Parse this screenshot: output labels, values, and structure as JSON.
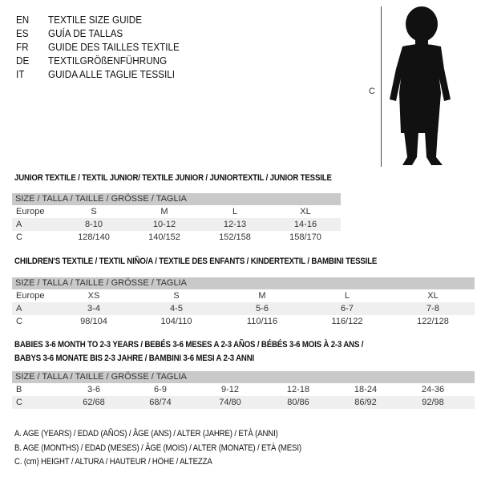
{
  "languages": [
    {
      "code": "EN",
      "title": "TEXTILE SIZE GUIDE"
    },
    {
      "code": "ES",
      "title": "GUÍA DE TALLAS"
    },
    {
      "code": "FR",
      "title": "GUIDE DES TAILLES TEXTILE"
    },
    {
      "code": "DE",
      "title": "TEXTILGRÖßENFÜHRUNG"
    },
    {
      "code": "IT",
      "title": "GUIDA ALLE TAGLIE TESSILI"
    }
  ],
  "figure": {
    "measure_label": "C"
  },
  "size_header": "SIZE / TALLA / TAILLE / GRÖSSE / TAGLIA",
  "junior": {
    "title": "JUNIOR TEXTILE / TEXTIL JUNIOR/ TEXTILE JUNIOR / JUNIORTEXTIL / JUNIOR TESSILE",
    "rows": [
      {
        "label": "Europe",
        "values": [
          "S",
          "M",
          "L",
          "XL"
        ]
      },
      {
        "label": "A",
        "values": [
          "8-10",
          "10-12",
          "12-13",
          "14-16"
        ]
      },
      {
        "label": "C",
        "values": [
          "128/140",
          "140/152",
          "152/158",
          "158/170"
        ]
      }
    ]
  },
  "children": {
    "title": "CHILDREN'S TEXTILE / TEXTIL NIÑO/A / TEXTILE DES ENFANTS / KINDERTEXTIL / BAMBINI TESSILE",
    "rows": [
      {
        "label": "Europe",
        "values": [
          "XS",
          "S",
          "M",
          "L",
          "XL"
        ]
      },
      {
        "label": "A",
        "values": [
          "3-4",
          "4-5",
          "5-6",
          "6-7",
          "7-8"
        ]
      },
      {
        "label": "C",
        "values": [
          "98/104",
          "104/110",
          "110/116",
          "116/122",
          "122/128"
        ]
      }
    ]
  },
  "babies": {
    "title_line1": "BABIES 3-6 MONTH TO 2-3 YEARS / BEBÉS 3-6 MESES A 2-3 AÑOS / BÉBÉS 3-6 MOIS À 2-3 ANS /",
    "title_line2": "BABYS 3-6 MONATE BIS 2-3 JAHRE / BAMBINI 3-6 MESI A 2-3 ANNI",
    "rows": [
      {
        "label": "B",
        "values": [
          "3-6",
          "6-9",
          "9-12",
          "12-18",
          "18-24",
          "24-36"
        ]
      },
      {
        "label": "C",
        "values": [
          "62/68",
          "68/74",
          "74/80",
          "80/86",
          "86/92",
          "92/98"
        ]
      }
    ]
  },
  "legend": [
    "A. AGE (YEARS) / EDAD (AÑOS) / ÂGE (ANS) / ALTER (JAHRE) / ETÀ (ANNI)",
    "B. AGE (MONTHS) / EDAD (MESES) / ÂGE (MOIS) / ALTER (MONATE) / ETÀ (MESI)",
    "C. (cm) HEIGHT / ALTURA / HAUTEUR / HÖHE / ALTEZZA"
  ]
}
